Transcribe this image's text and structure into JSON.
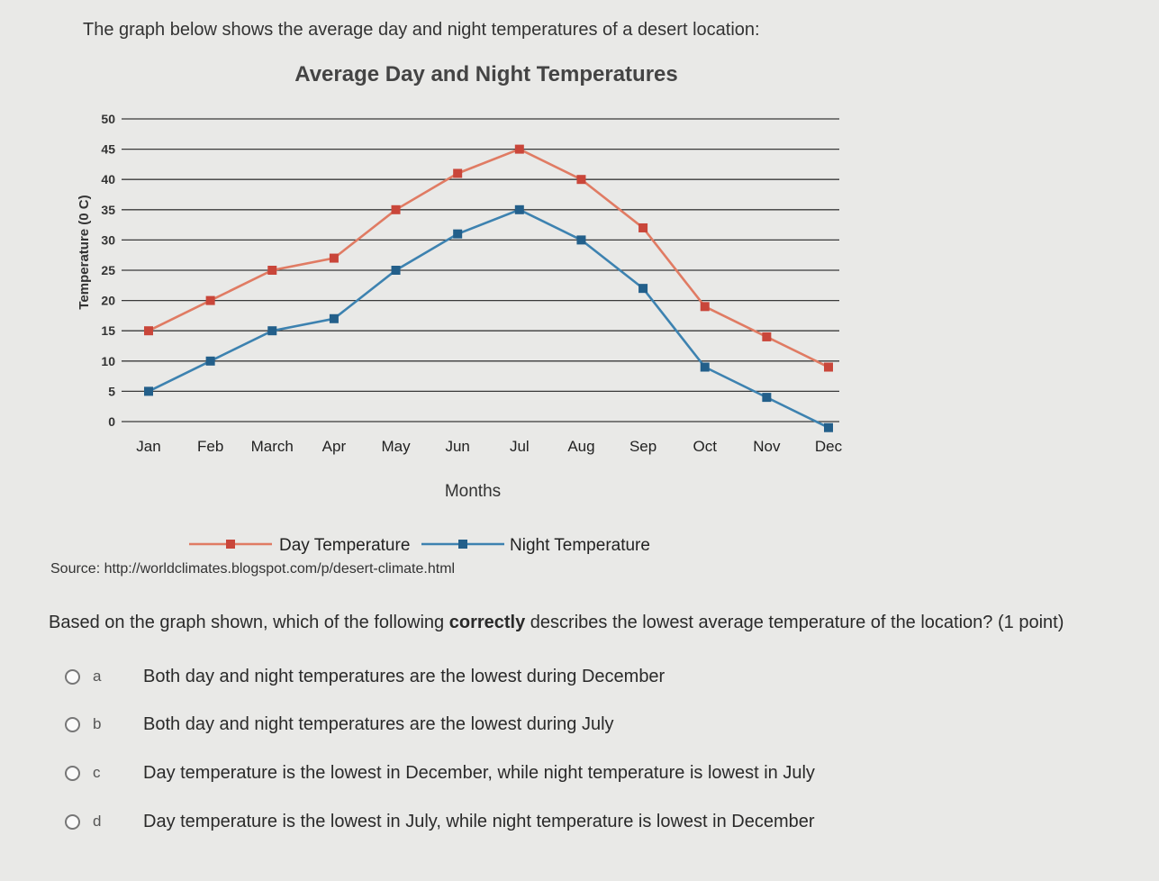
{
  "intro": "The graph below shows the average day and night temperatures of a desert location:",
  "source": "Source: http://worldclimates.blogspot.com/p/desert-climate.html",
  "question": {
    "before": "Based on the graph shown, which of the following ",
    "emphasis": "correctly",
    "after": " describes the lowest average temperature of the location? (1 point)"
  },
  "options": [
    {
      "letter": "a",
      "text": "Both day and night temperatures are the lowest during December"
    },
    {
      "letter": "b",
      "text": "Both day and night temperatures are the lowest during July"
    },
    {
      "letter": "c",
      "text": "Day temperature is the lowest in December, while night temperature is lowest in July"
    },
    {
      "letter": "d",
      "text": "Day temperature is the lowest in July, while night temperature is lowest in December"
    }
  ],
  "chart_data": {
    "type": "line",
    "title": "Average Day and Night Temperatures",
    "xlabel": "Months",
    "ylabel": "Temperature (0 C)",
    "categories": [
      "Jan",
      "Feb",
      "March",
      "Apr",
      "May",
      "Jun",
      "Jul",
      "Aug",
      "Sep",
      "Oct",
      "Nov",
      "Dec"
    ],
    "ylim": [
      0,
      50
    ],
    "yticks": [
      0,
      5,
      10,
      15,
      20,
      25,
      30,
      35,
      40,
      45,
      50
    ],
    "grid": true,
    "legend_position": "bottom",
    "series": [
      {
        "name": "Day Temperature",
        "color": "#e07b63",
        "marker_color": "#c9463a",
        "values": [
          15,
          20,
          25,
          27,
          35,
          41,
          45,
          40,
          32,
          19,
          14,
          9
        ]
      },
      {
        "name": "Night Temperature",
        "color": "#3d82b0",
        "marker_color": "#235f8a",
        "values": [
          5,
          10,
          15,
          17,
          25,
          31,
          35,
          30,
          22,
          9,
          4,
          -1
        ]
      }
    ]
  }
}
